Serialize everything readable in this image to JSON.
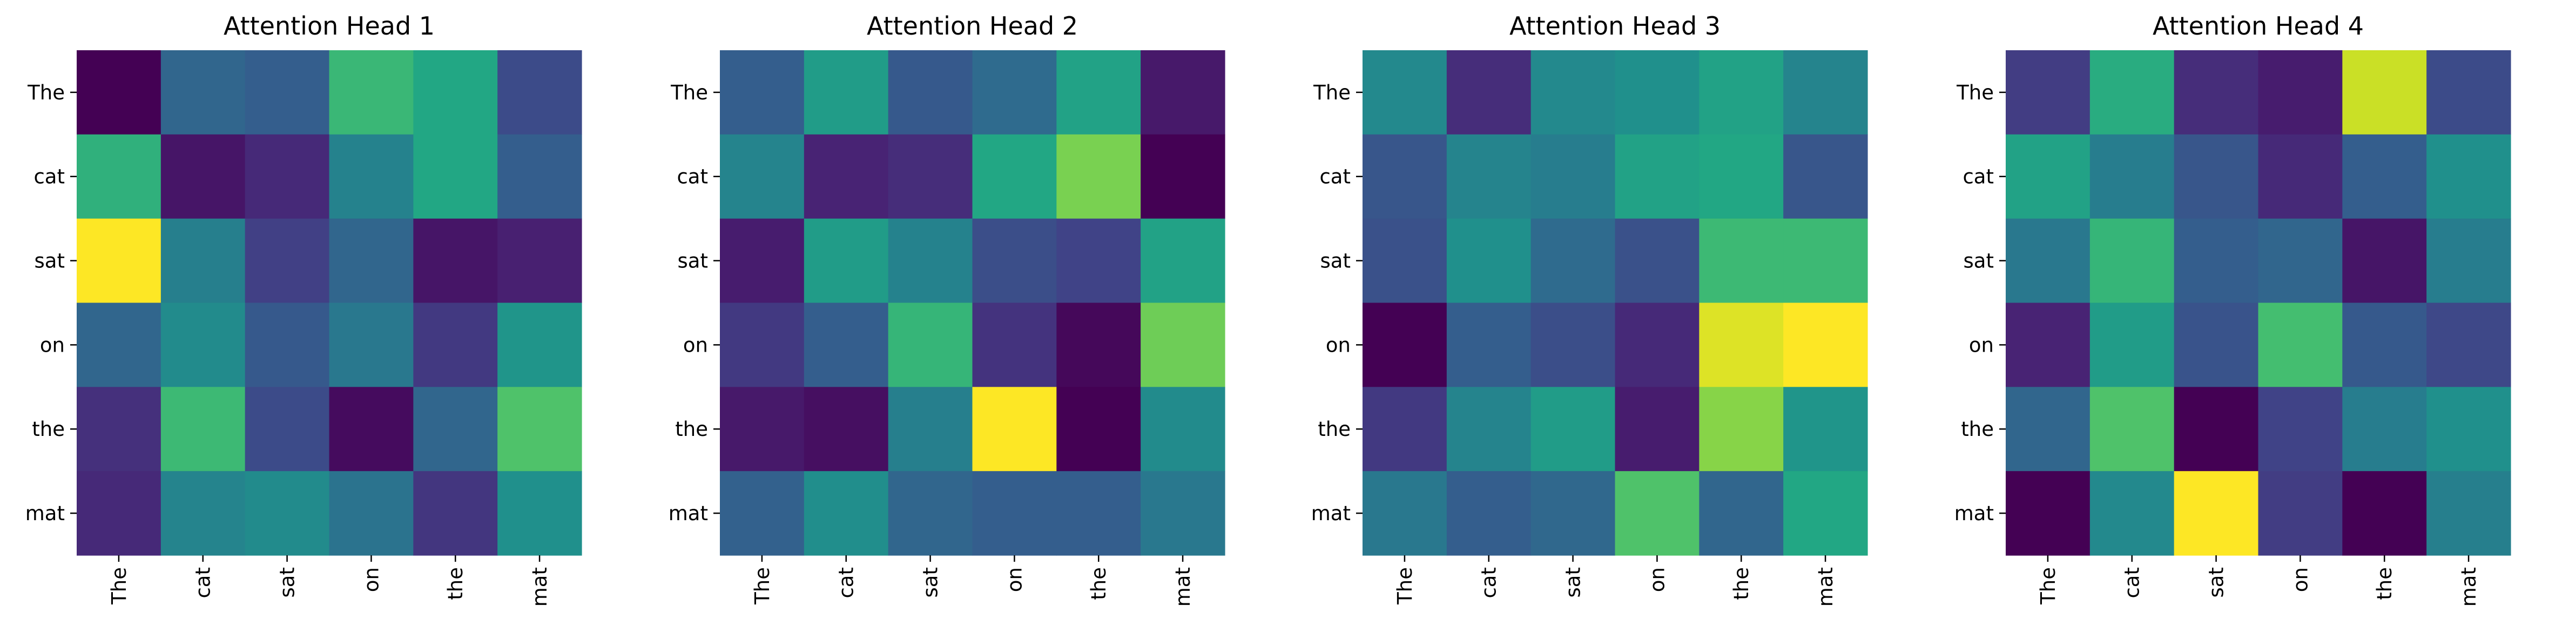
{
  "chart_data": [
    {
      "type": "heatmap",
      "title": "Attention Head 1",
      "x_labels": [
        "The",
        "cat",
        "sat",
        "on",
        "the",
        "mat"
      ],
      "y_labels": [
        "The",
        "cat",
        "sat",
        "on",
        "the",
        "mat"
      ],
      "values": [
        [
          0.0,
          0.33,
          0.3,
          0.67,
          0.6,
          0.23
        ],
        [
          0.64,
          0.06,
          0.12,
          0.44,
          0.6,
          0.3
        ],
        [
          1.0,
          0.43,
          0.19,
          0.33,
          0.06,
          0.09
        ],
        [
          0.33,
          0.48,
          0.28,
          0.4,
          0.17,
          0.52
        ],
        [
          0.14,
          0.68,
          0.23,
          0.03,
          0.33,
          0.72
        ],
        [
          0.12,
          0.45,
          0.48,
          0.38,
          0.16,
          0.5
        ]
      ],
      "colormap": "viridis",
      "value_range": [
        0,
        1
      ],
      "grid": false,
      "xlabel": "",
      "ylabel": ""
    },
    {
      "type": "heatmap",
      "title": "Attention Head 2",
      "x_labels": [
        "The",
        "cat",
        "sat",
        "on",
        "the",
        "mat"
      ],
      "y_labels": [
        "The",
        "cat",
        "sat",
        "on",
        "the",
        "mat"
      ],
      "values": [
        [
          0.3,
          0.55,
          0.28,
          0.35,
          0.58,
          0.07
        ],
        [
          0.45,
          0.1,
          0.13,
          0.6,
          0.8,
          0.0
        ],
        [
          0.08,
          0.55,
          0.44,
          0.24,
          0.2,
          0.58
        ],
        [
          0.17,
          0.3,
          0.66,
          0.15,
          0.02,
          0.78
        ],
        [
          0.07,
          0.04,
          0.43,
          1.0,
          0.0,
          0.48
        ],
        [
          0.31,
          0.49,
          0.33,
          0.3,
          0.3,
          0.4
        ]
      ],
      "colormap": "viridis",
      "value_range": [
        0,
        1
      ],
      "grid": false,
      "xlabel": "",
      "ylabel": ""
    },
    {
      "type": "heatmap",
      "title": "Attention Head 3",
      "x_labels": [
        "The",
        "cat",
        "sat",
        "on",
        "the",
        "mat"
      ],
      "y_labels": [
        "The",
        "cat",
        "sat",
        "on",
        "the",
        "mat"
      ],
      "values": [
        [
          0.47,
          0.13,
          0.47,
          0.5,
          0.58,
          0.45
        ],
        [
          0.27,
          0.45,
          0.42,
          0.58,
          0.6,
          0.27
        ],
        [
          0.25,
          0.5,
          0.35,
          0.25,
          0.68,
          0.68
        ],
        [
          0.0,
          0.3,
          0.24,
          0.12,
          0.95,
          1.0
        ],
        [
          0.17,
          0.45,
          0.55,
          0.08,
          0.82,
          0.52
        ],
        [
          0.4,
          0.3,
          0.34,
          0.72,
          0.33,
          0.6
        ]
      ],
      "colormap": "viridis",
      "value_range": [
        0,
        1
      ],
      "grid": false,
      "xlabel": "",
      "ylabel": ""
    },
    {
      "type": "heatmap",
      "title": "Attention Head 4",
      "x_labels": [
        "The",
        "cat",
        "sat",
        "on",
        "the",
        "mat"
      ],
      "y_labels": [
        "The",
        "cat",
        "sat",
        "on",
        "the",
        "mat"
      ],
      "values": [
        [
          0.18,
          0.62,
          0.13,
          0.08,
          0.92,
          0.23
        ],
        [
          0.58,
          0.42,
          0.27,
          0.12,
          0.3,
          0.5
        ],
        [
          0.4,
          0.66,
          0.3,
          0.33,
          0.06,
          0.42
        ],
        [
          0.1,
          0.55,
          0.26,
          0.7,
          0.28,
          0.22
        ],
        [
          0.33,
          0.72,
          0.0,
          0.2,
          0.42,
          0.5
        ],
        [
          0.0,
          0.47,
          1.0,
          0.18,
          0.0,
          0.43
        ]
      ],
      "colormap": "viridis",
      "value_range": [
        0,
        1
      ],
      "grid": false,
      "xlabel": "",
      "ylabel": ""
    }
  ]
}
